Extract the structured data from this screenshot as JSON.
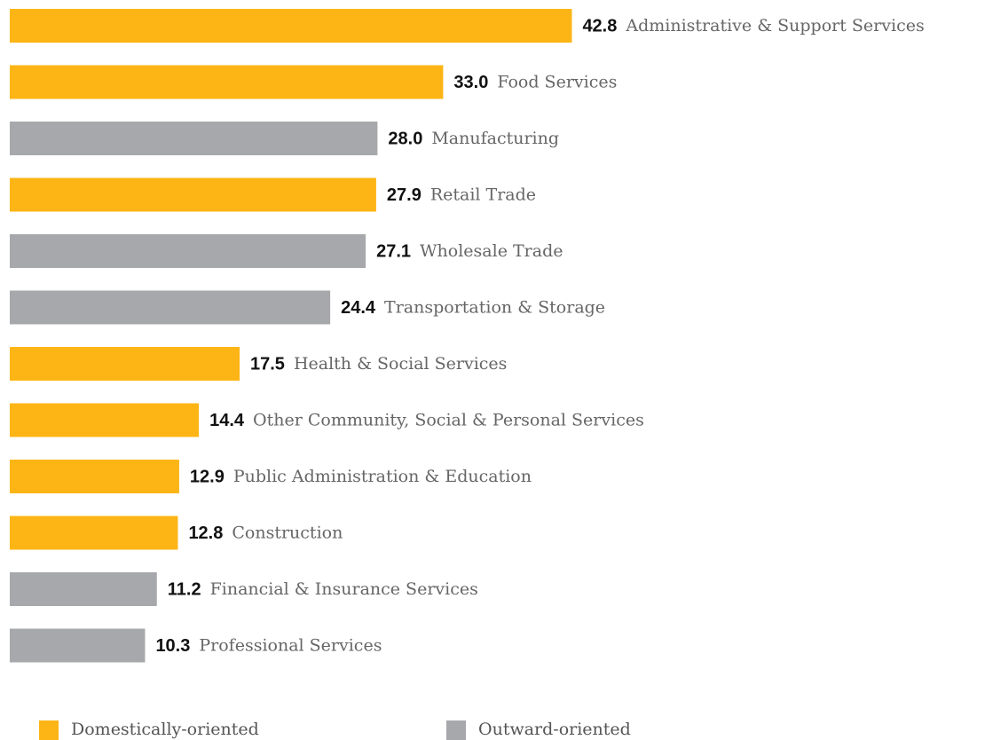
{
  "chart_data": {
    "type": "bar",
    "orientation": "horizontal",
    "categories": [
      "Administrative & Support Services",
      "Food Services",
      "Manufacturing",
      "Retail Trade",
      "Wholesale Trade",
      "Transportation & Storage",
      "Health & Social Services",
      "Other Community, Social & Personal Services",
      "Public Administration & Education",
      "Construction",
      "Financial & Insurance Services",
      "Professional Services"
    ],
    "series": [
      {
        "name": "Domestically-oriented",
        "color": "#fdb515",
        "values": [
          42.8,
          33.0,
          null,
          27.9,
          null,
          null,
          17.5,
          14.4,
          12.9,
          12.8,
          null,
          null
        ],
        "value_labels": [
          "42.8",
          "33.0",
          null,
          "27.9",
          null,
          null,
          "17.5",
          "14.4",
          "12.9",
          "12.8",
          null,
          null
        ]
      },
      {
        "name": "Outward-oriented",
        "color": "#a7a8ab",
        "values": [
          null,
          null,
          28.0,
          null,
          27.1,
          24.4,
          null,
          null,
          null,
          null,
          11.2,
          10.3
        ],
        "value_labels": [
          null,
          null,
          "28.0",
          null,
          "27.1",
          "24.4",
          null,
          null,
          null,
          null,
          "11.2",
          "10.3"
        ]
      }
    ]
  }
}
